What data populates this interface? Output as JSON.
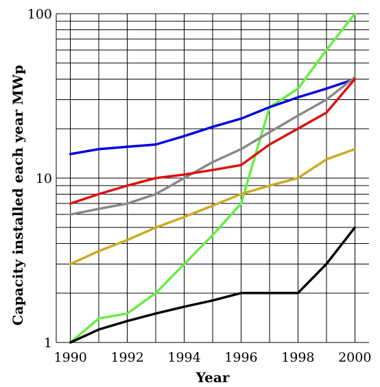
{
  "chart_data": {
    "type": "line",
    "title": "",
    "xlabel": "Year",
    "ylabel": "Capacity installed each year MWp",
    "y_scale": "log",
    "xlim": [
      1989.5,
      2000.5
    ],
    "ylim": [
      1,
      100
    ],
    "x_ticks": [
      1990,
      1992,
      1994,
      1996,
      1998,
      2000
    ],
    "x_tick_labels": [
      "1990",
      "1992",
      "1994",
      "1996",
      "1998",
      "2000"
    ],
    "y_ticks": [
      1,
      10,
      100
    ],
    "y_tick_labels": [
      "1",
      "10",
      "100"
    ],
    "grid": true,
    "legend": "none",
    "x": [
      1990,
      1991,
      1992,
      1993,
      1994,
      1995,
      1996,
      1997,
      1998,
      1999,
      2000
    ],
    "series": [
      {
        "color": "#66ee44",
        "values": [
          1,
          1.4,
          1.5,
          2,
          3,
          4.5,
          7,
          27,
          35,
          60,
          100
        ]
      },
      {
        "color": "#0000dd",
        "values": [
          14,
          15,
          15.5,
          16,
          18,
          20.5,
          23,
          27,
          31,
          35,
          40
        ]
      },
      {
        "color": "#888888",
        "values": [
          6,
          6.5,
          7,
          8,
          10,
          12.5,
          15,
          19,
          24,
          30,
          41
        ]
      },
      {
        "color": "#dd1111",
        "values": [
          7,
          8,
          9,
          10,
          10.5,
          11.2,
          12,
          16,
          20,
          25,
          40
        ]
      },
      {
        "color": "#ccaa22",
        "values": [
          3,
          3.6,
          4.2,
          5,
          5.8,
          6.8,
          8,
          9,
          10,
          13,
          15
        ]
      },
      {
        "color": "#000000",
        "values": [
          1,
          1.2,
          1.35,
          1.5,
          1.65,
          1.8,
          2,
          2,
          2,
          3,
          5
        ]
      }
    ]
  }
}
